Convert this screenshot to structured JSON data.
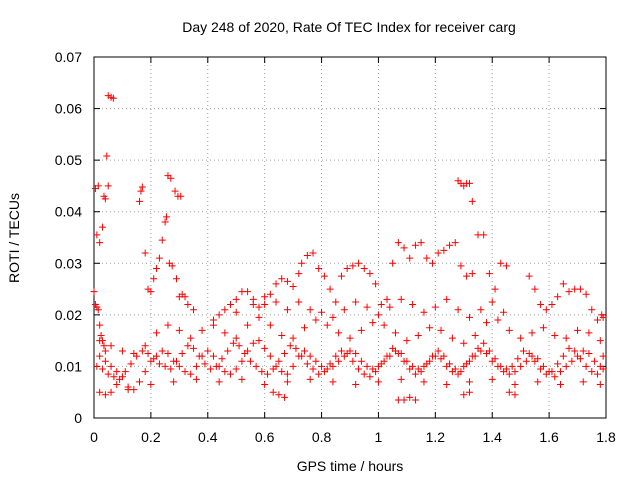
{
  "chart_data": {
    "type": "scatter",
    "title": "Day 248 of 2020, Rate Of TEC Index for receiver carg",
    "xlabel": "GPS time / hours",
    "ylabel": "ROTI / TECUs",
    "xlim": [
      0,
      1.8
    ],
    "ylim": [
      0,
      0.07
    ],
    "x_ticks": [
      0,
      0.2,
      0.4,
      0.6,
      0.8,
      1,
      1.2,
      1.4,
      1.6,
      1.8
    ],
    "x_tick_labels": [
      "0",
      "0.2",
      "0.4",
      "0.6",
      "0.8",
      "1",
      "1.2",
      "1.4",
      "1.6",
      "1.8"
    ],
    "y_ticks": [
      0,
      0.01,
      0.02,
      0.03,
      0.04,
      0.05,
      0.06,
      0.07
    ],
    "y_tick_labels": [
      "0",
      "0.01",
      "0.02",
      "0.03",
      "0.04",
      "0.05",
      "0.06",
      "0.07"
    ],
    "grid": true,
    "marker": "+",
    "marker_color": "#ff0000",
    "points": [
      [
        0.0,
        0.0245
      ],
      [
        0.005,
        0.0445
      ],
      [
        0.01,
        0.0355
      ],
      [
        0.015,
        0.045
      ],
      [
        0.02,
        0.034
      ],
      [
        0.03,
        0.037
      ],
      [
        0.035,
        0.043
      ],
      [
        0.04,
        0.0425
      ],
      [
        0.045,
        0.0508
      ],
      [
        0.05,
        0.045
      ],
      [
        0.05,
        0.0625
      ],
      [
        0.06,
        0.0622
      ],
      [
        0.068,
        0.062
      ],
      [
        0.16,
        0.042
      ],
      [
        0.165,
        0.044
      ],
      [
        0.17,
        0.0448
      ],
      [
        0.26,
        0.047
      ],
      [
        0.27,
        0.0465
      ],
      [
        0.285,
        0.044
      ],
      [
        0.295,
        0.043
      ],
      [
        0.305,
        0.043
      ],
      [
        0.015,
        0.021
      ],
      [
        0.02,
        0.018
      ],
      [
        0.025,
        0.016
      ],
      [
        0.03,
        0.015
      ],
      [
        0.035,
        0.014
      ],
      [
        0.04,
        0.013
      ],
      [
        0.005,
        0.022
      ],
      [
        0.01,
        0.0215
      ],
      [
        0.18,
        0.032
      ],
      [
        0.19,
        0.025
      ],
      [
        0.2,
        0.0245
      ],
      [
        0.21,
        0.027
      ],
      [
        0.22,
        0.029
      ],
      [
        0.23,
        0.031
      ],
      [
        0.24,
        0.0345
      ],
      [
        0.25,
        0.038
      ],
      [
        0.255,
        0.039
      ],
      [
        0.265,
        0.03
      ],
      [
        0.275,
        0.0295
      ],
      [
        0.29,
        0.027
      ],
      [
        0.3,
        0.0235
      ],
      [
        0.31,
        0.024
      ],
      [
        0.32,
        0.0235
      ],
      [
        0.33,
        0.022
      ],
      [
        0.35,
        0.021
      ],
      [
        0.42,
        0.019
      ],
      [
        0.44,
        0.02
      ],
      [
        0.46,
        0.021
      ],
      [
        0.48,
        0.022
      ],
      [
        0.5,
        0.023
      ],
      [
        0.52,
        0.0245
      ],
      [
        0.54,
        0.0245
      ],
      [
        0.56,
        0.023
      ],
      [
        0.58,
        0.0215
      ],
      [
        0.6,
        0.022
      ],
      [
        0.62,
        0.024
      ],
      [
        0.64,
        0.026
      ],
      [
        0.66,
        0.027
      ],
      [
        0.68,
        0.0265
      ],
      [
        0.7,
        0.0255
      ],
      [
        0.72,
        0.028
      ],
      [
        0.73,
        0.03
      ],
      [
        0.75,
        0.0315
      ],
      [
        0.77,
        0.032
      ],
      [
        0.79,
        0.029
      ],
      [
        0.81,
        0.0275
      ],
      [
        0.83,
        0.025
      ],
      [
        0.85,
        0.0225
      ],
      [
        0.87,
        0.0275
      ],
      [
        0.89,
        0.029
      ],
      [
        0.91,
        0.0295
      ],
      [
        0.93,
        0.03
      ],
      [
        0.95,
        0.029
      ],
      [
        0.97,
        0.028
      ],
      [
        0.99,
        0.026
      ],
      [
        1.01,
        0.022
      ],
      [
        1.03,
        0.023
      ],
      [
        1.05,
        0.03
      ],
      [
        1.07,
        0.034
      ],
      [
        1.09,
        0.033
      ],
      [
        1.11,
        0.031
      ],
      [
        1.13,
        0.0335
      ],
      [
        1.15,
        0.034
      ],
      [
        1.17,
        0.031
      ],
      [
        1.19,
        0.03
      ],
      [
        1.21,
        0.032
      ],
      [
        1.23,
        0.0325
      ],
      [
        1.25,
        0.0335
      ],
      [
        1.27,
        0.034
      ],
      [
        1.29,
        0.0295
      ],
      [
        1.31,
        0.0275
      ],
      [
        1.33,
        0.028
      ],
      [
        1.35,
        0.0355
      ],
      [
        1.37,
        0.0355
      ],
      [
        1.39,
        0.028
      ],
      [
        1.41,
        0.025
      ],
      [
        1.43,
        0.03
      ],
      [
        1.45,
        0.0295
      ],
      [
        1.28,
        0.046
      ],
      [
        1.29,
        0.0455
      ],
      [
        1.3,
        0.045
      ],
      [
        1.31,
        0.0455
      ],
      [
        1.32,
        0.0455
      ],
      [
        1.33,
        0.042
      ],
      [
        1.53,
        0.0275
      ],
      [
        1.55,
        0.025
      ],
      [
        1.57,
        0.022
      ],
      [
        1.59,
        0.021
      ],
      [
        1.61,
        0.022
      ],
      [
        1.63,
        0.0235
      ],
      [
        1.65,
        0.026
      ],
      [
        1.67,
        0.0245
      ],
      [
        1.69,
        0.025
      ],
      [
        1.71,
        0.025
      ],
      [
        1.73,
        0.024
      ],
      [
        1.75,
        0.021
      ],
      [
        1.77,
        0.019
      ],
      [
        1.79,
        0.0195
      ],
      [
        1.785,
        0.02
      ],
      [
        1.07,
        0.0035
      ],
      [
        1.09,
        0.0035
      ],
      [
        1.11,
        0.004
      ],
      [
        1.13,
        0.0035
      ],
      [
        0.02,
        0.005
      ],
      [
        0.04,
        0.0045
      ],
      [
        0.06,
        0.005
      ],
      [
        0.65,
        0.0045
      ],
      [
        0.63,
        0.005
      ],
      [
        0.67,
        0.004
      ],
      [
        1.3,
        0.0045
      ],
      [
        1.32,
        0.005
      ],
      [
        1.46,
        0.005
      ],
      [
        1.48,
        0.0045
      ],
      [
        0.02,
        0.012
      ],
      [
        0.04,
        0.011
      ],
      [
        0.06,
        0.01
      ],
      [
        0.08,
        0.009
      ],
      [
        0.1,
        0.008
      ],
      [
        0.12,
        0.006
      ],
      [
        0.14,
        0.0055
      ],
      [
        0.16,
        0.007
      ],
      [
        0.18,
        0.009
      ],
      [
        0.2,
        0.011
      ],
      [
        0.22,
        0.012
      ],
      [
        0.24,
        0.013
      ],
      [
        0.26,
        0.0125
      ],
      [
        0.28,
        0.011
      ],
      [
        0.3,
        0.01
      ],
      [
        0.32,
        0.009
      ],
      [
        0.34,
        0.0085
      ],
      [
        0.36,
        0.01
      ],
      [
        0.38,
        0.012
      ],
      [
        0.4,
        0.013
      ],
      [
        0.42,
        0.012
      ],
      [
        0.44,
        0.01
      ],
      [
        0.46,
        0.009
      ],
      [
        0.48,
        0.0085
      ],
      [
        0.5,
        0.0095
      ],
      [
        0.52,
        0.011
      ],
      [
        0.54,
        0.013
      ],
      [
        0.56,
        0.0145
      ],
      [
        0.58,
        0.015
      ],
      [
        0.6,
        0.0135
      ],
      [
        0.62,
        0.012
      ],
      [
        0.64,
        0.01
      ],
      [
        0.66,
        0.009
      ],
      [
        0.68,
        0.0085
      ],
      [
        0.7,
        0.01
      ],
      [
        0.72,
        0.012
      ],
      [
        0.74,
        0.013
      ],
      [
        0.76,
        0.012
      ],
      [
        0.78,
        0.011
      ],
      [
        0.8,
        0.01
      ],
      [
        0.82,
        0.0095
      ],
      [
        0.84,
        0.01
      ],
      [
        0.86,
        0.011
      ],
      [
        0.88,
        0.012
      ],
      [
        0.9,
        0.013
      ],
      [
        0.92,
        0.0125
      ],
      [
        0.94,
        0.011
      ],
      [
        0.96,
        0.01
      ],
      [
        0.98,
        0.0095
      ],
      [
        1.0,
        0.01
      ],
      [
        1.02,
        0.011
      ],
      [
        1.04,
        0.012
      ],
      [
        1.06,
        0.013
      ],
      [
        1.08,
        0.0125
      ],
      [
        1.1,
        0.011
      ],
      [
        1.12,
        0.01
      ],
      [
        1.14,
        0.0095
      ],
      [
        1.16,
        0.01
      ],
      [
        1.18,
        0.011
      ],
      [
        1.2,
        0.012
      ],
      [
        1.22,
        0.0115
      ],
      [
        1.24,
        0.01
      ],
      [
        1.26,
        0.009
      ],
      [
        1.28,
        0.0085
      ],
      [
        1.3,
        0.01
      ],
      [
        1.32,
        0.011
      ],
      [
        1.34,
        0.012
      ],
      [
        1.36,
        0.013
      ],
      [
        1.38,
        0.0125
      ],
      [
        1.4,
        0.011
      ],
      [
        1.42,
        0.01
      ],
      [
        1.44,
        0.009
      ],
      [
        1.46,
        0.0085
      ],
      [
        1.48,
        0.009
      ],
      [
        1.5,
        0.01
      ],
      [
        1.52,
        0.011
      ],
      [
        1.54,
        0.012
      ],
      [
        1.56,
        0.0115
      ],
      [
        1.58,
        0.01
      ],
      [
        1.6,
        0.009
      ],
      [
        1.62,
        0.008
      ],
      [
        1.64,
        0.009
      ],
      [
        1.66,
        0.01
      ],
      [
        1.68,
        0.011
      ],
      [
        1.7,
        0.012
      ],
      [
        1.72,
        0.013
      ],
      [
        1.74,
        0.0125
      ],
      [
        1.76,
        0.011
      ],
      [
        1.78,
        0.01
      ],
      [
        1.79,
        0.012
      ],
      [
        0.01,
        0.01
      ],
      [
        0.03,
        0.0095
      ],
      [
        0.05,
        0.0085
      ],
      [
        0.07,
        0.008
      ],
      [
        0.09,
        0.0075
      ],
      [
        0.11,
        0.009
      ],
      [
        0.13,
        0.0105
      ],
      [
        0.15,
        0.012
      ],
      [
        0.17,
        0.013
      ],
      [
        0.19,
        0.0125
      ],
      [
        0.21,
        0.0115
      ],
      [
        0.23,
        0.0105
      ],
      [
        0.25,
        0.01
      ],
      [
        0.27,
        0.0095
      ],
      [
        0.29,
        0.011
      ],
      [
        0.31,
        0.0125
      ],
      [
        0.33,
        0.014
      ],
      [
        0.35,
        0.0135
      ],
      [
        0.37,
        0.012
      ],
      [
        0.39,
        0.0105
      ],
      [
        0.41,
        0.0095
      ],
      [
        0.43,
        0.01
      ],
      [
        0.45,
        0.0115
      ],
      [
        0.47,
        0.013
      ],
      [
        0.49,
        0.0145
      ],
      [
        0.51,
        0.014
      ],
      [
        0.53,
        0.0125
      ],
      [
        0.55,
        0.011
      ],
      [
        0.57,
        0.01
      ],
      [
        0.59,
        0.009
      ],
      [
        0.61,
        0.0085
      ],
      [
        0.63,
        0.0095
      ],
      [
        0.65,
        0.011
      ],
      [
        0.67,
        0.0125
      ],
      [
        0.69,
        0.014
      ],
      [
        0.71,
        0.0135
      ],
      [
        0.73,
        0.012
      ],
      [
        0.75,
        0.0105
      ],
      [
        0.77,
        0.0095
      ],
      [
        0.79,
        0.0085
      ],
      [
        0.81,
        0.009
      ],
      [
        0.83,
        0.0105
      ],
      [
        0.85,
        0.012
      ],
      [
        0.87,
        0.013
      ],
      [
        0.89,
        0.0125
      ],
      [
        0.91,
        0.011
      ],
      [
        0.93,
        0.0095
      ],
      [
        0.95,
        0.0085
      ],
      [
        0.97,
        0.008
      ],
      [
        0.99,
        0.009
      ],
      [
        1.01,
        0.0105
      ],
      [
        1.03,
        0.012
      ],
      [
        1.05,
        0.0135
      ],
      [
        1.07,
        0.0125
      ],
      [
        1.09,
        0.011
      ],
      [
        1.11,
        0.0095
      ],
      [
        1.13,
        0.0085
      ],
      [
        1.15,
        0.009
      ],
      [
        1.17,
        0.0105
      ],
      [
        1.19,
        0.012
      ],
      [
        1.21,
        0.013
      ],
      [
        1.23,
        0.012
      ],
      [
        1.25,
        0.0105
      ],
      [
        1.27,
        0.0095
      ],
      [
        1.29,
        0.009
      ],
      [
        1.31,
        0.0105
      ],
      [
        1.33,
        0.012
      ],
      [
        1.35,
        0.0135
      ],
      [
        1.37,
        0.0145
      ],
      [
        1.39,
        0.013
      ],
      [
        1.41,
        0.0115
      ],
      [
        1.43,
        0.01
      ],
      [
        1.45,
        0.0095
      ],
      [
        1.47,
        0.01
      ],
      [
        1.49,
        0.0115
      ],
      [
        1.51,
        0.013
      ],
      [
        1.53,
        0.0125
      ],
      [
        1.55,
        0.011
      ],
      [
        1.57,
        0.0095
      ],
      [
        1.59,
        0.0085
      ],
      [
        1.61,
        0.009
      ],
      [
        1.63,
        0.0105
      ],
      [
        1.65,
        0.012
      ],
      [
        1.67,
        0.0135
      ],
      [
        1.69,
        0.013
      ],
      [
        1.71,
        0.0115
      ],
      [
        1.73,
        0.01
      ],
      [
        1.75,
        0.009
      ],
      [
        1.77,
        0.0085
      ],
      [
        1.79,
        0.0095
      ],
      [
        0.02,
        0.015
      ],
      [
        0.06,
        0.014
      ],
      [
        0.1,
        0.013
      ],
      [
        0.14,
        0.0125
      ],
      [
        0.18,
        0.014
      ],
      [
        0.22,
        0.0165
      ],
      [
        0.26,
        0.018
      ],
      [
        0.3,
        0.017
      ],
      [
        0.34,
        0.0155
      ],
      [
        0.38,
        0.017
      ],
      [
        0.42,
        0.018
      ],
      [
        0.46,
        0.0165
      ],
      [
        0.5,
        0.0155
      ],
      [
        0.54,
        0.018
      ],
      [
        0.58,
        0.0195
      ],
      [
        0.62,
        0.018
      ],
      [
        0.66,
        0.016
      ],
      [
        0.7,
        0.0155
      ],
      [
        0.74,
        0.0175
      ],
      [
        0.78,
        0.019
      ],
      [
        0.82,
        0.018
      ],
      [
        0.86,
        0.0165
      ],
      [
        0.9,
        0.0155
      ],
      [
        0.94,
        0.017
      ],
      [
        0.98,
        0.0185
      ],
      [
        1.02,
        0.018
      ],
      [
        1.06,
        0.0165
      ],
      [
        1.1,
        0.015
      ],
      [
        1.14,
        0.016
      ],
      [
        1.18,
        0.0175
      ],
      [
        1.22,
        0.017
      ],
      [
        1.26,
        0.0155
      ],
      [
        1.3,
        0.0145
      ],
      [
        1.34,
        0.016
      ],
      [
        1.38,
        0.0185
      ],
      [
        1.42,
        0.019
      ],
      [
        1.46,
        0.017
      ],
      [
        1.5,
        0.0155
      ],
      [
        1.54,
        0.0165
      ],
      [
        1.58,
        0.0175
      ],
      [
        1.62,
        0.016
      ],
      [
        1.66,
        0.0155
      ],
      [
        1.7,
        0.017
      ],
      [
        1.74,
        0.0165
      ],
      [
        1.78,
        0.015
      ],
      [
        0.08,
        0.0065
      ],
      [
        0.12,
        0.0055
      ],
      [
        0.2,
        0.0065
      ],
      [
        0.28,
        0.007
      ],
      [
        0.36,
        0.0075
      ],
      [
        0.44,
        0.007
      ],
      [
        0.52,
        0.0075
      ],
      [
        0.6,
        0.0065
      ],
      [
        0.68,
        0.007
      ],
      [
        0.76,
        0.0075
      ],
      [
        0.84,
        0.007
      ],
      [
        0.92,
        0.0065
      ],
      [
        1.0,
        0.007
      ],
      [
        1.08,
        0.0075
      ],
      [
        1.16,
        0.007
      ],
      [
        1.24,
        0.0065
      ],
      [
        1.32,
        0.007
      ],
      [
        1.4,
        0.0075
      ],
      [
        1.48,
        0.0065
      ],
      [
        1.56,
        0.007
      ],
      [
        1.64,
        0.0065
      ],
      [
        1.72,
        0.007
      ],
      [
        1.78,
        0.0065
      ],
      [
        0.5,
        0.0205
      ],
      [
        0.56,
        0.022
      ],
      [
        0.6,
        0.0235
      ],
      [
        0.64,
        0.0225
      ],
      [
        0.68,
        0.021
      ],
      [
        0.72,
        0.0225
      ],
      [
        0.76,
        0.021
      ],
      [
        0.8,
        0.0205
      ],
      [
        0.84,
        0.0195
      ],
      [
        0.88,
        0.021
      ],
      [
        0.92,
        0.0225
      ],
      [
        0.96,
        0.0215
      ],
      [
        1.0,
        0.02
      ],
      [
        1.04,
        0.0215
      ],
      [
        1.08,
        0.023
      ],
      [
        1.12,
        0.022
      ],
      [
        1.16,
        0.0205
      ],
      [
        1.2,
        0.0215
      ],
      [
        1.24,
        0.023
      ],
      [
        1.28,
        0.021
      ],
      [
        1.32,
        0.0195
      ],
      [
        1.36,
        0.021
      ],
      [
        1.4,
        0.0225
      ],
      [
        1.44,
        0.0205
      ]
    ]
  }
}
